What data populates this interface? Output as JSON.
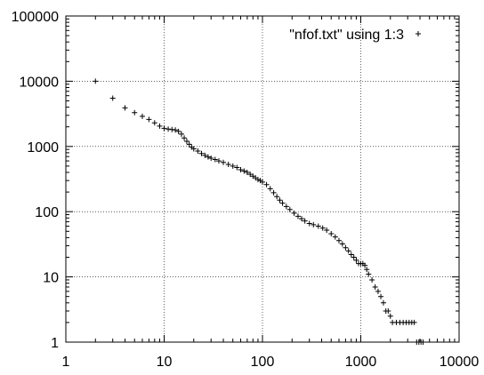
{
  "chart_data": {
    "type": "scatter",
    "title": "",
    "xlabel": "",
    "ylabel": "",
    "x_scale": "log",
    "y_scale": "log",
    "xlim": [
      1,
      10000
    ],
    "ylim": [
      1,
      100000
    ],
    "grid": true,
    "legend_position": "top-right",
    "x_ticks": [
      {
        "value": 1,
        "label": "1"
      },
      {
        "value": 10,
        "label": "10"
      },
      {
        "value": 100,
        "label": "100"
      },
      {
        "value": 1000,
        "label": "1000"
      },
      {
        "value": 10000,
        "label": "10000"
      }
    ],
    "y_ticks": [
      {
        "value": 1,
        "label": "1"
      },
      {
        "value": 10,
        "label": "10"
      },
      {
        "value": 100,
        "label": "100"
      },
      {
        "value": 1000,
        "label": "1000"
      },
      {
        "value": 10000,
        "label": "10000"
      },
      {
        "value": 100000,
        "label": "100000"
      }
    ],
    "series": [
      {
        "name": "\"nfof.txt\" using 1:3",
        "marker": "+",
        "color": "#000000",
        "points": [
          [
            2,
            10000
          ],
          [
            3,
            5500
          ],
          [
            4,
            3900
          ],
          [
            5,
            3300
          ],
          [
            6,
            2900
          ],
          [
            7,
            2600
          ],
          [
            8,
            2300
          ],
          [
            9,
            2050
          ],
          [
            10,
            1900
          ],
          [
            11,
            1850
          ],
          [
            12,
            1820
          ],
          [
            13,
            1790
          ],
          [
            14,
            1700
          ],
          [
            15,
            1550
          ],
          [
            16,
            1350
          ],
          [
            17,
            1200
          ],
          [
            18,
            1080
          ],
          [
            19,
            980
          ],
          [
            20,
            920
          ],
          [
            22,
            850
          ],
          [
            24,
            780
          ],
          [
            26,
            730
          ],
          [
            28,
            690
          ],
          [
            30,
            660
          ],
          [
            33,
            630
          ],
          [
            36,
            600
          ],
          [
            40,
            570
          ],
          [
            45,
            530
          ],
          [
            50,
            500
          ],
          [
            55,
            475
          ],
          [
            60,
            440
          ],
          [
            65,
            420
          ],
          [
            70,
            400
          ],
          [
            75,
            375
          ],
          [
            80,
            350
          ],
          [
            85,
            330
          ],
          [
            90,
            310
          ],
          [
            95,
            300
          ],
          [
            100,
            285
          ],
          [
            110,
            260
          ],
          [
            120,
            225
          ],
          [
            130,
            195
          ],
          [
            140,
            170
          ],
          [
            150,
            150
          ],
          [
            160,
            135
          ],
          [
            175,
            120
          ],
          [
            190,
            108
          ],
          [
            210,
            95
          ],
          [
            230,
            85
          ],
          [
            250,
            78
          ],
          [
            270,
            72
          ],
          [
            300,
            66
          ],
          [
            330,
            63
          ],
          [
            370,
            60
          ],
          [
            410,
            56
          ],
          [
            450,
            52
          ],
          [
            500,
            46
          ],
          [
            550,
            41
          ],
          [
            600,
            36
          ],
          [
            650,
            32
          ],
          [
            700,
            28
          ],
          [
            750,
            25
          ],
          [
            800,
            22
          ],
          [
            850,
            20
          ],
          [
            900,
            18
          ],
          [
            950,
            16
          ],
          [
            1000,
            16
          ],
          [
            1050,
            16
          ],
          [
            1100,
            15
          ],
          [
            1150,
            13
          ],
          [
            1200,
            11
          ],
          [
            1300,
            9
          ],
          [
            1400,
            7
          ],
          [
            1500,
            6
          ],
          [
            1600,
            5
          ],
          [
            1700,
            4
          ],
          [
            1800,
            3
          ],
          [
            1900,
            3
          ],
          [
            2000,
            2.5
          ],
          [
            2100,
            2
          ],
          [
            2300,
            2
          ],
          [
            2500,
            2
          ],
          [
            2700,
            2
          ],
          [
            2900,
            2
          ],
          [
            3100,
            2
          ],
          [
            3300,
            2
          ],
          [
            3500,
            2
          ],
          [
            3700,
            1
          ],
          [
            3900,
            1
          ],
          [
            4100,
            1
          ],
          [
            4300,
            1
          ]
        ]
      }
    ]
  }
}
